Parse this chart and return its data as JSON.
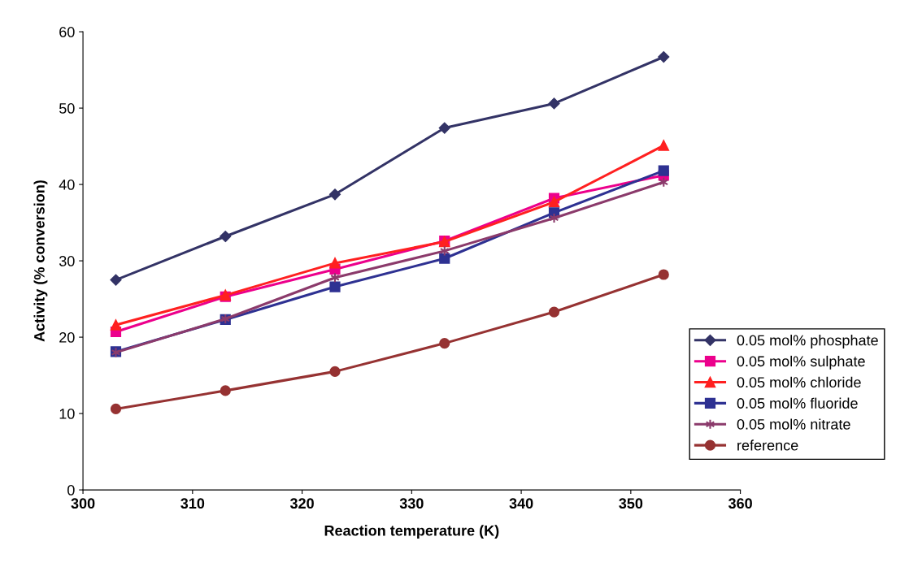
{
  "chart_data": {
    "type": "line",
    "xlabel": "Reaction temperature (K)",
    "ylabel": "Activity (% conversion)",
    "x": [
      303,
      313,
      323,
      333,
      343,
      353
    ],
    "series": [
      {
        "name": "0.05 mol% phosphate",
        "color": "#333366",
        "marker": "diamond",
        "values": [
          27.5,
          33.2,
          38.7,
          47.4,
          50.6,
          56.7
        ]
      },
      {
        "name": "0.05 mol% sulphate",
        "color": "#ec008c",
        "marker": "square",
        "values": [
          20.7,
          25.3,
          28.9,
          32.6,
          38.2,
          41.2
        ]
      },
      {
        "name": "0.05 mol% chloride",
        "color": "#ff2020",
        "marker": "triangle",
        "values": [
          21.6,
          25.5,
          29.7,
          32.5,
          37.7,
          45.1
        ]
      },
      {
        "name": "0.05 mol% fluoride",
        "color": "#2e3192",
        "marker": "square",
        "values": [
          18.1,
          22.3,
          26.6,
          30.3,
          36.3,
          41.8
        ]
      },
      {
        "name": "0.05 mol% nitrate",
        "color": "#8b3a6b",
        "marker": "cross",
        "values": [
          18.0,
          22.4,
          27.8,
          31.3,
          35.6,
          40.3
        ]
      },
      {
        "name": "reference",
        "color": "#963232",
        "marker": "circle",
        "values": [
          10.6,
          13.0,
          15.5,
          19.2,
          23.3,
          28.2
        ]
      }
    ],
    "xlim": [
      300,
      360
    ],
    "xticks": [
      300,
      310,
      320,
      330,
      340,
      350,
      360
    ],
    "ylim": [
      0,
      60
    ],
    "yticks": [
      0,
      10,
      20,
      30,
      40,
      50,
      60
    ],
    "grid": false,
    "legend": "right",
    "line_style": "solid"
  }
}
